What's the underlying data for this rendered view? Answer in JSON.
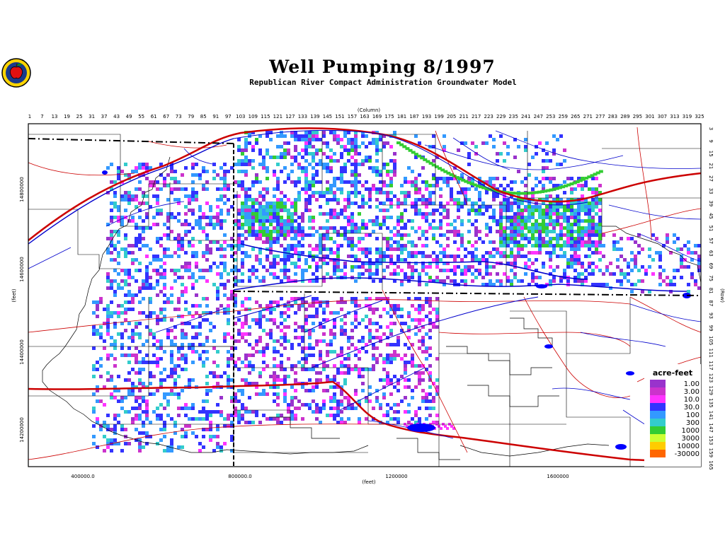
{
  "title": "Well Pumping 8/1997",
  "subtitle": "Republican River Compact Administration Groundwater Model",
  "axes": {
    "column_label": "(Column)",
    "row_label": "(Row)",
    "x_label": "(feet)",
    "y_label": "(feet)",
    "column_ticks": [
      "1",
      "7",
      "13",
      "19",
      "25",
      "31",
      "37",
      "43",
      "49",
      "55",
      "61",
      "67",
      "73",
      "79",
      "85",
      "91",
      "97",
      "103",
      "109",
      "115",
      "121",
      "127",
      "133",
      "139",
      "145",
      "151",
      "157",
      "163",
      "169",
      "175",
      "181",
      "187",
      "193",
      "199",
      "205",
      "211",
      "217",
      "223",
      "229",
      "235",
      "241",
      "247",
      "253",
      "259",
      "265",
      "271",
      "277",
      "283",
      "289",
      "295",
      "301",
      "307",
      "313",
      "319",
      "325"
    ],
    "row_ticks": [
      "3",
      "9",
      "15",
      "21",
      "27",
      "33",
      "39",
      "45",
      "51",
      "57",
      "63",
      "69",
      "75",
      "81",
      "87",
      "93",
      "99",
      "105",
      "111",
      "117",
      "123",
      "129",
      "135",
      "141",
      "147",
      "153",
      "159",
      "165"
    ],
    "x_feet_ticks": [
      "400000.0",
      "800000.0",
      "1200000",
      "1600000"
    ],
    "y_feet_ticks": [
      "14800000",
      "14600000",
      "14400000",
      "14200000"
    ]
  },
  "legend": {
    "title": "acre-feet",
    "classes": [
      {
        "label": "1.00",
        "color": "#9933cc"
      },
      {
        "label": "3.00",
        "color": "#cc33cc"
      },
      {
        "label": "10.0",
        "color": "#ff33ff"
      },
      {
        "label": "30.0",
        "color": "#3333ff"
      },
      {
        "label": "100",
        "color": "#3399ff"
      },
      {
        "label": "300",
        "color": "#33cccc"
      },
      {
        "label": "1000",
        "color": "#33cc33"
      },
      {
        "label": "3000",
        "color": "#ccff33"
      },
      {
        "label": "10000",
        "color": "#ffcc00"
      },
      {
        "label": "-30000",
        "color": "#ff6600"
      }
    ]
  },
  "colors": {
    "rivers": "#0000cc",
    "roads": "#cc0000",
    "boundaries": "#000000"
  }
}
